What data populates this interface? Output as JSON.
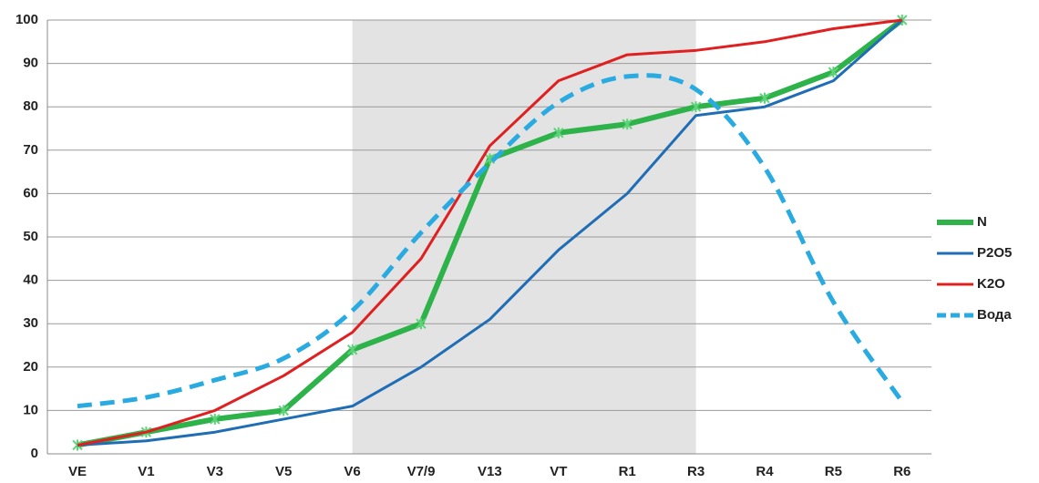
{
  "chart_data": {
    "type": "line",
    "categories": [
      "VE",
      "V1",
      "V3",
      "V5",
      "V6",
      "V7/9",
      "V13",
      "VT",
      "R1",
      "R3",
      "R4",
      "R5",
      "R6"
    ],
    "series": [
      {
        "name": "N",
        "color": "#2eb24a",
        "values": [
          2,
          5,
          8,
          10,
          24,
          30,
          68,
          74,
          76,
          80,
          82,
          88,
          100
        ]
      },
      {
        "name": "P2O5",
        "color": "#1f6db5",
        "values": [
          2,
          3,
          5,
          8,
          11,
          20,
          31,
          47,
          60,
          78,
          80,
          86,
          100
        ]
      },
      {
        "name": "K2O",
        "color": "#e02020",
        "values": [
          2,
          5,
          10,
          18,
          28,
          45,
          71,
          86,
          92,
          93,
          95,
          98,
          100
        ]
      },
      {
        "name": "Вода",
        "color": "#29abe2",
        "values": [
          11,
          13,
          17,
          22,
          33,
          51,
          67,
          81,
          87,
          84,
          66,
          35,
          12
        ]
      }
    ],
    "ylim": [
      0,
      100
    ],
    "yticks": [
      0,
      10,
      20,
      30,
      40,
      50,
      60,
      70,
      80,
      90,
      100
    ],
    "grid": true
  }
}
